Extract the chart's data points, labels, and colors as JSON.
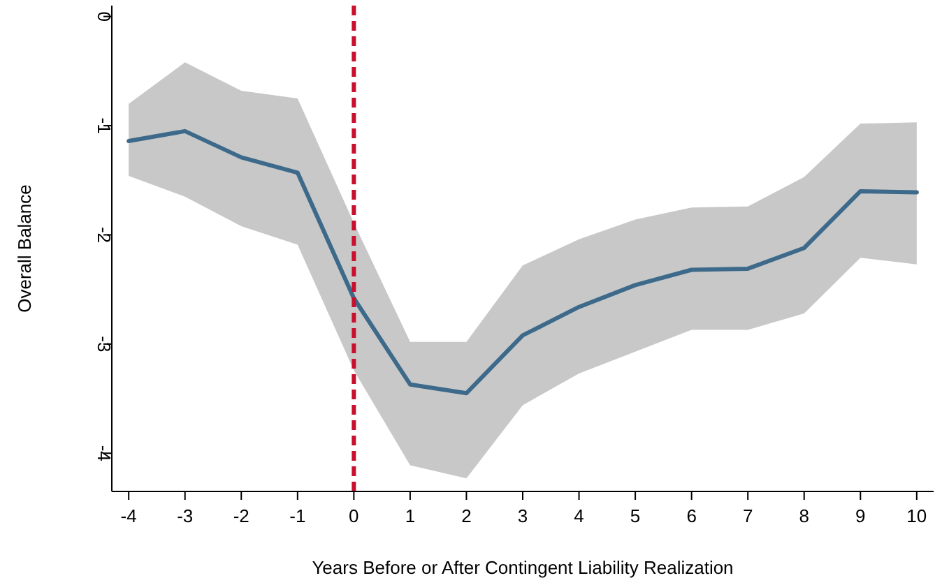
{
  "chart_data": {
    "type": "line",
    "xlabel": "Years Before or After Contingent Liability Realization",
    "ylabel": "Overall Balance",
    "x": [
      -4,
      -3,
      -2,
      -1,
      0,
      1,
      2,
      3,
      4,
      5,
      6,
      7,
      8,
      9,
      10
    ],
    "series": [
      {
        "color": "#3d6a8a",
        "values": [
          -1.14,
          -1.05,
          -1.29,
          -1.43,
          -2.58,
          -3.37,
          -3.45,
          -2.92,
          -2.66,
          -2.46,
          -2.32,
          -2.31,
          -2.12,
          -1.6,
          -1.61
        ],
        "lower": [
          -1.46,
          -1.65,
          -1.92,
          -2.09,
          -3.24,
          -4.11,
          -4.23,
          -3.56,
          -3.27,
          -3.07,
          -2.87,
          -2.87,
          -2.72,
          -2.21,
          -2.27
        ],
        "upper": [
          -0.8,
          -0.42,
          -0.68,
          -0.75,
          -1.89,
          -2.98,
          -2.98,
          -2.28,
          -2.04,
          -1.86,
          -1.75,
          -1.74,
          -1.47,
          -0.98,
          -0.97
        ]
      }
    ],
    "xlim": [
      -4.3,
      10.3
    ],
    "ylim": [
      -4.35,
      0.1
    ],
    "xticks": [
      -4,
      -3,
      -2,
      -1,
      0,
      1,
      2,
      3,
      4,
      5,
      6,
      7,
      8,
      9,
      10
    ],
    "yticks": [
      -4,
      -3,
      -2,
      -1,
      0
    ],
    "ref_lines": [
      {
        "axis": "x",
        "value": 0,
        "color": "#c8102e",
        "line_style": "dashed"
      }
    ],
    "grid": false,
    "marker": "none",
    "line_style": "solid"
  }
}
